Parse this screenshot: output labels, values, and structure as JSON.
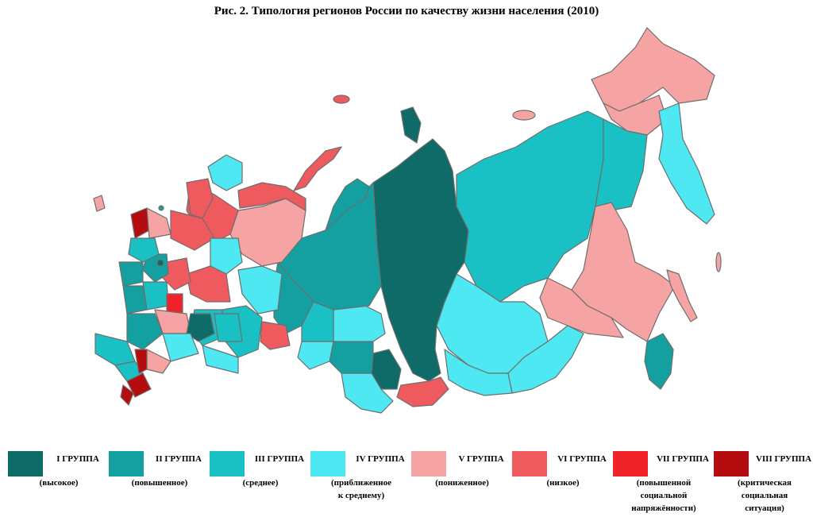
{
  "title": "Рис. 2. Типология регионов России по качеству жизни населения (2010)",
  "legend": [
    {
      "group": "I ГРУППА",
      "desc": "(высокое)",
      "color": "#0e6b68"
    },
    {
      "group": "II ГРУППА",
      "desc": "(повышенное)",
      "color": "#14a0a0"
    },
    {
      "group": "III ГРУППА",
      "desc": "(среднее)",
      "color": "#19c1c4"
    },
    {
      "group": "IV ГРУППА",
      "desc": "(приближенное\nк среднему)",
      "color": "#4de8f2"
    },
    {
      "group": "V ГРУППА",
      "desc": "(пониженное)",
      "color": "#f5a3a3"
    },
    {
      "group": "VI ГРУППА",
      "desc": "(низкое)",
      "color": "#ee5a5e"
    },
    {
      "group": "VII ГРУППА",
      "desc": "(повышенной\nсоциальной\nнапряжённости)",
      "color": "#f0232a"
    },
    {
      "group": "VIII ГРУППА",
      "desc": "(критическая\nсоциальная\nситуация)",
      "color": "#b50c10"
    }
  ]
}
